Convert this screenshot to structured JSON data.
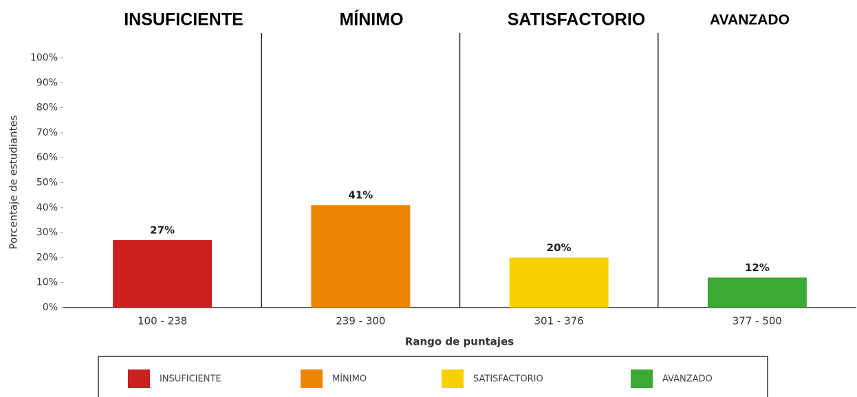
{
  "chart_data": {
    "type": "bar",
    "levels": [
      "INSUFICIENTE",
      "MÍNIMO",
      "SATISFACTORIO",
      "AVANZADO"
    ],
    "categories": [
      "100 - 238",
      "239 - 300",
      "301 - 376",
      "377 - 500"
    ],
    "values": [
      27,
      41,
      20,
      12
    ],
    "value_labels": [
      "27%",
      "41%",
      "20%",
      "12%"
    ],
    "colors": [
      "#cc1f1f",
      "#ee8500",
      "#f8d000",
      "#3aaa35"
    ],
    "x_label": "Rango de puntajes",
    "y_label": "Porcentaje de estudiantes",
    "ylim": [
      0,
      100
    ],
    "yticks": [
      {
        "value": 0,
        "label": "0%"
      },
      {
        "value": 10,
        "label": "10%"
      },
      {
        "value": 20,
        "label": "20%"
      },
      {
        "value": 30,
        "label": "30%"
      },
      {
        "value": 40,
        "label": "40%"
      },
      {
        "value": 50,
        "label": "50%"
      },
      {
        "value": 60,
        "label": "60%"
      },
      {
        "value": 70,
        "label": "70%"
      },
      {
        "value": 80,
        "label": "80%"
      },
      {
        "value": 90,
        "label": "90%"
      },
      {
        "value": 100,
        "label": "100%"
      }
    ]
  }
}
